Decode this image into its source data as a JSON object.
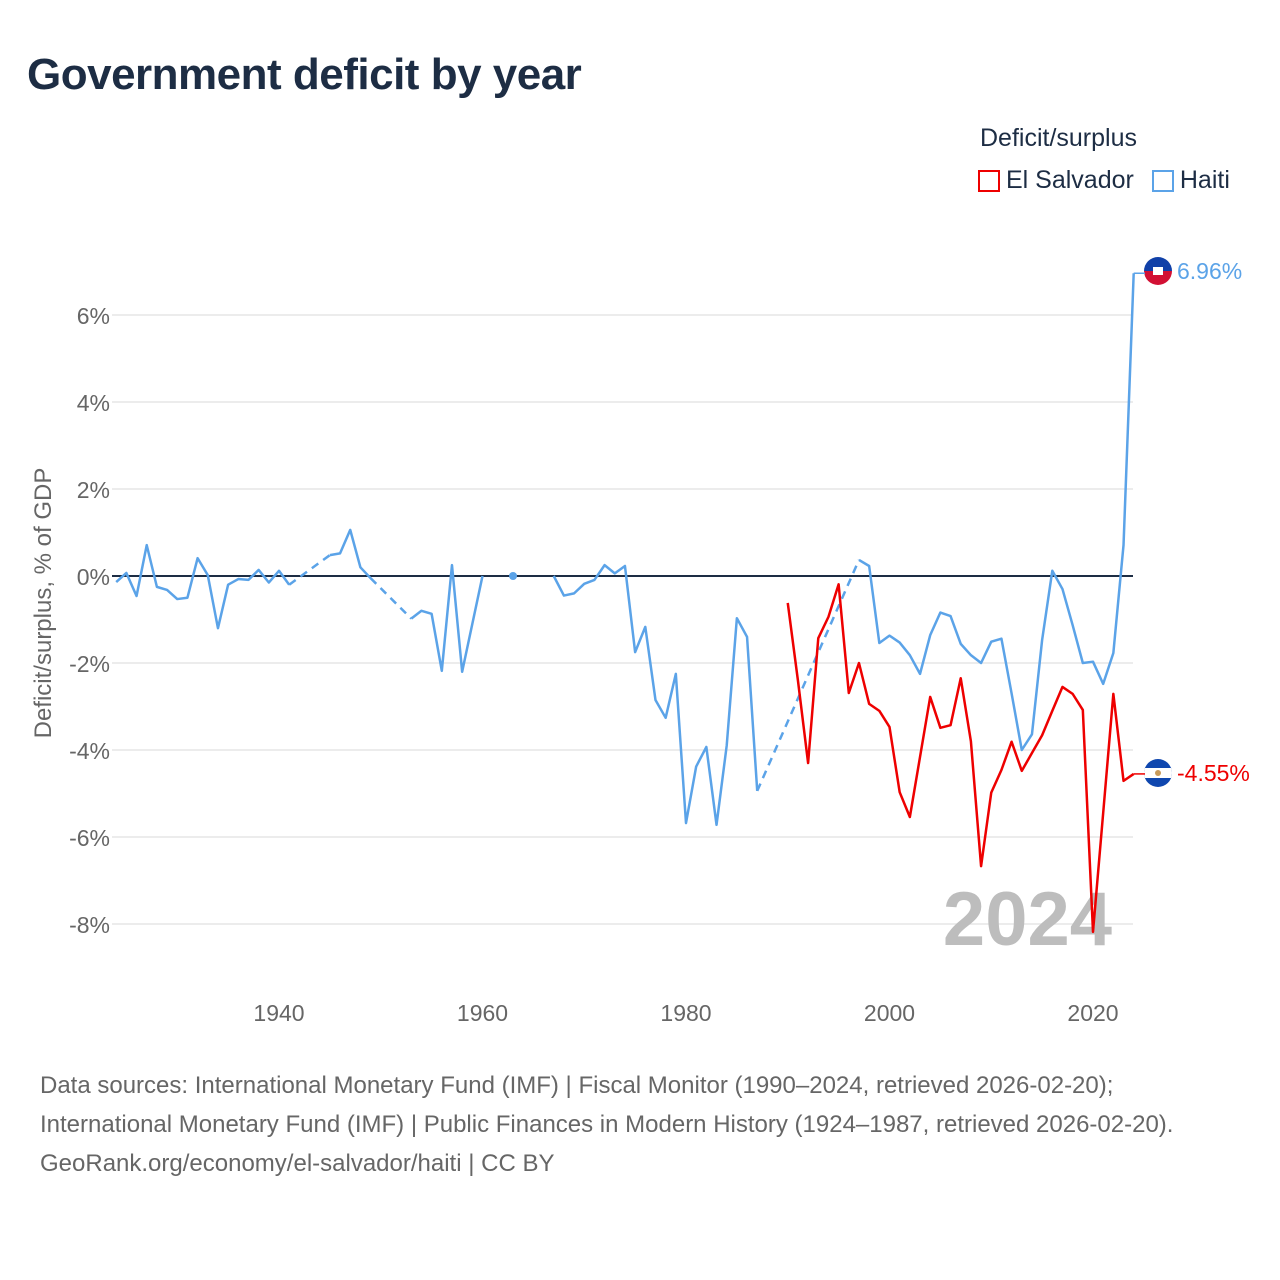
{
  "title": "Government deficit by year",
  "legend": {
    "title": "Deficit/surplus",
    "items": [
      {
        "label": "El Salvador",
        "color": "#ee0000"
      },
      {
        "label": "Haiti",
        "color": "#5ba3e8"
      }
    ]
  },
  "footer": {
    "sources": "Data sources: International Monetary Fund (IMF) | Fiscal Monitor (1990–2024, retrieved 2026-02-20); International Monetary Fund (IMF) | Public Finances in Modern History (1924–1987, retrieved 2026-02-20).",
    "credit": "GeoRank.org/economy/el-salvador/haiti | CC BY"
  },
  "chart_data": {
    "type": "line",
    "title": "Government deficit by year",
    "ylabel": "Deficit/surplus, % of GDP",
    "xlabel": "",
    "xlim": [
      1923.5,
      2024
    ],
    "ylim": [
      -9.2,
      7.4
    ],
    "x_ticks": [
      1940,
      1960,
      1980,
      2000,
      2020
    ],
    "y_ticks": [
      -8,
      -6,
      -4,
      -2,
      0,
      2,
      4,
      6
    ],
    "y_tick_labels": [
      "-8%",
      "-6%",
      "-4%",
      "-2%",
      "0%",
      "2%",
      "4%",
      "6%"
    ],
    "year_watermark": "2024",
    "series": [
      {
        "name": "Haiti",
        "color": "#5ba3e8",
        "end_label": "6.96%",
        "points": [
          [
            1924,
            -0.14
          ],
          [
            1925,
            0.07
          ],
          [
            1926,
            -0.46
          ],
          [
            1927,
            0.71
          ],
          [
            1928,
            -0.25
          ],
          [
            1929,
            -0.32
          ],
          [
            1930,
            -0.53
          ],
          [
            1931,
            -0.5
          ],
          [
            1932,
            0.41
          ],
          [
            1933,
            0.02
          ],
          [
            1934,
            -1.2
          ],
          [
            1935,
            -0.2
          ],
          [
            1936,
            -0.07
          ],
          [
            1937,
            -0.09
          ],
          [
            1938,
            0.14
          ],
          [
            1939,
            -0.15
          ],
          [
            1940,
            0.12
          ],
          [
            1941,
            -0.2
          ],
          [
            1945,
            0.48
          ],
          [
            1946,
            0.52
          ],
          [
            1947,
            1.06
          ],
          [
            1948,
            0.2
          ],
          [
            1949,
            -0.05
          ],
          [
            1953,
            -0.98
          ],
          [
            1954,
            -0.8
          ],
          [
            1955,
            -0.87
          ],
          [
            1956,
            -2.18
          ],
          [
            1957,
            0.25
          ],
          [
            1958,
            -2.2
          ],
          [
            1959,
            -1.1
          ],
          [
            1960,
            0.0
          ],
          [
            1963,
            0.0
          ],
          [
            1967,
            0.0
          ],
          [
            1968,
            -0.45
          ],
          [
            1969,
            -0.4
          ],
          [
            1970,
            -0.18
          ],
          [
            1971,
            -0.09
          ],
          [
            1972,
            0.25
          ],
          [
            1973,
            0.06
          ],
          [
            1974,
            0.23
          ],
          [
            1975,
            -1.75
          ],
          [
            1976,
            -1.17
          ],
          [
            1977,
            -2.85
          ],
          [
            1978,
            -3.26
          ],
          [
            1979,
            -2.25
          ],
          [
            1980,
            -5.68
          ],
          [
            1981,
            -4.38
          ],
          [
            1982,
            -3.93
          ],
          [
            1983,
            -5.72
          ],
          [
            1984,
            -3.9
          ],
          [
            1985,
            -0.97
          ],
          [
            1986,
            -1.4
          ],
          [
            1987,
            -4.94
          ],
          [
            1997,
            0.37
          ],
          [
            1998,
            0.23
          ],
          [
            1999,
            -1.54
          ],
          [
            2000,
            -1.37
          ],
          [
            2001,
            -1.53
          ],
          [
            2002,
            -1.82
          ],
          [
            2003,
            -2.25
          ],
          [
            2004,
            -1.36
          ],
          [
            2005,
            -0.84
          ],
          [
            2006,
            -0.92
          ],
          [
            2007,
            -1.56
          ],
          [
            2008,
            -1.82
          ],
          [
            2009,
            -2.0
          ],
          [
            2010,
            -1.51
          ],
          [
            2011,
            -1.44
          ],
          [
            2012,
            -2.7
          ],
          [
            2013,
            -4.0
          ],
          [
            2014,
            -3.64
          ],
          [
            2015,
            -1.47
          ],
          [
            2016,
            0.12
          ],
          [
            2017,
            -0.3
          ],
          [
            2018,
            -1.13
          ],
          [
            2019,
            -2.0
          ],
          [
            2020,
            -1.97
          ],
          [
            2021,
            -2.48
          ],
          [
            2022,
            -1.77
          ],
          [
            2023,
            0.71
          ],
          [
            2024,
            6.96
          ]
        ]
      },
      {
        "name": "El Salvador",
        "color": "#ee0000",
        "end_label": "-4.55%",
        "points": [
          [
            1990,
            -0.62
          ],
          [
            1991,
            -2.4
          ],
          [
            1992,
            -4.3
          ],
          [
            1993,
            -1.43
          ],
          [
            1994,
            -0.94
          ],
          [
            1995,
            -0.19
          ],
          [
            1996,
            -2.69
          ],
          [
            1997,
            -2.0
          ],
          [
            1998,
            -2.94
          ],
          [
            1999,
            -3.1
          ],
          [
            2000,
            -3.47
          ],
          [
            2001,
            -4.97
          ],
          [
            2002,
            -5.54
          ],
          [
            2003,
            -4.16
          ],
          [
            2004,
            -2.78
          ],
          [
            2005,
            -3.49
          ],
          [
            2006,
            -3.43
          ],
          [
            2007,
            -2.35
          ],
          [
            2008,
            -3.8
          ],
          [
            2009,
            -6.67
          ],
          [
            2010,
            -4.98
          ],
          [
            2011,
            -4.46
          ],
          [
            2012,
            -3.81
          ],
          [
            2013,
            -4.48
          ],
          [
            2014,
            -4.07
          ],
          [
            2015,
            -3.66
          ],
          [
            2016,
            -3.1
          ],
          [
            2017,
            -2.55
          ],
          [
            2018,
            -2.71
          ],
          [
            2019,
            -3.08
          ],
          [
            2020,
            -8.18
          ],
          [
            2021,
            -5.45
          ],
          [
            2022,
            -2.71
          ],
          [
            2023,
            -4.71
          ],
          [
            2024,
            -4.55
          ]
        ]
      }
    ]
  }
}
